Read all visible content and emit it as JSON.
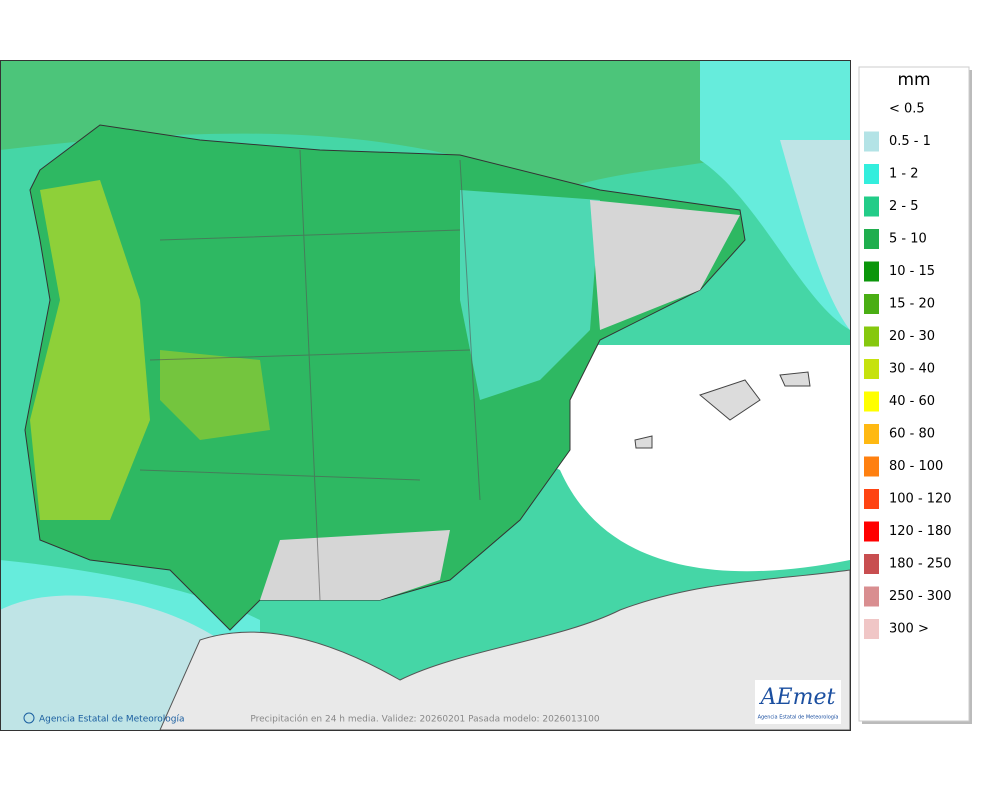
{
  "legend": {
    "unit": "mm",
    "items": [
      {
        "label": "< 0.5"
      },
      {
        "label": "0.5 - 1",
        "color": "#b3e3e6"
      },
      {
        "label": "1 - 2",
        "color": "#33eedd"
      },
      {
        "label": "2 - 5",
        "color": "#22cc88"
      },
      {
        "label": "5 - 10",
        "color": "#1fae4e"
      },
      {
        "label": "10 - 15",
        "color": "#0b960b"
      },
      {
        "label": "15 - 20",
        "color": "#4aae14"
      },
      {
        "label": "20 - 30",
        "color": "#86c80e"
      },
      {
        "label": "30 - 40",
        "color": "#c6e20e"
      },
      {
        "label": "40 - 60",
        "color": "#ffff00"
      },
      {
        "label": "60 - 80",
        "color": "#ffb912"
      },
      {
        "label": "80 - 100",
        "color": "#ff8010"
      },
      {
        "label": "100 - 120",
        "color": "#ff4412"
      },
      {
        "label": "120 - 180",
        "color": "#ff0000"
      },
      {
        "label": "180 - 250",
        "color": "#c84e50"
      },
      {
        "label": "250 - 300",
        "color": "#d98e90"
      },
      {
        "label": "300 >",
        "color": "#f0c6c6"
      }
    ]
  },
  "footer": {
    "credit": "Agencia Estatal de Meteorología",
    "caption": "Precipitación en 24 h media. Validez: 20260201 Pasada modelo: 2026013100"
  },
  "logo": {
    "name": "AEmet",
    "subtitle": "Agencia Estatal de Meteorología"
  }
}
